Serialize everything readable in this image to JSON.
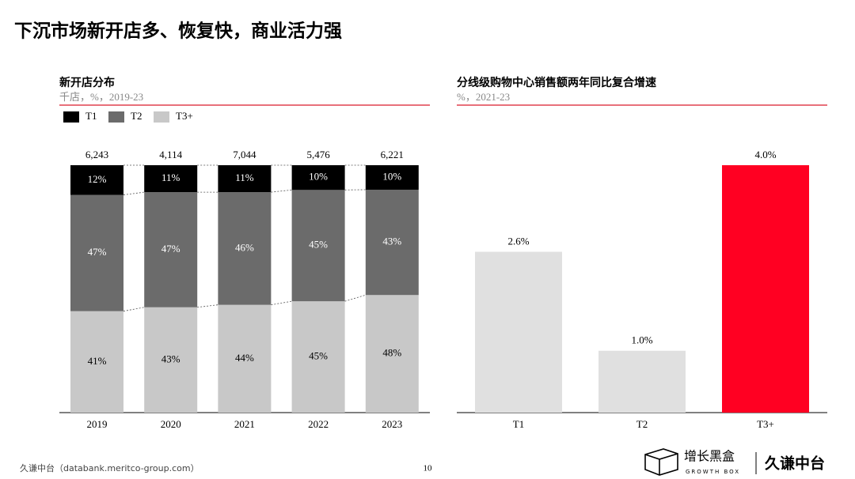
{
  "title": "下沉市场新开店多、恢复快，商业活力强",
  "chart_data": [
    {
      "type": "stacked_bar_100",
      "title": "新开店分布",
      "subtitle": "千店，%，2019-23",
      "categories": [
        "2019",
        "2020",
        "2021",
        "2022",
        "2023"
      ],
      "series": [
        {
          "name": "T1",
          "color": "#000000",
          "values": [
            12,
            11,
            11,
            10,
            10
          ],
          "value_labels": [
            "12%",
            "11%",
            "11%",
            "10%",
            "10%"
          ]
        },
        {
          "name": "T2",
          "color": "#6b6b6b",
          "values": [
            47,
            47,
            46,
            45,
            43
          ],
          "value_labels": [
            "47%",
            "47%",
            "46%",
            "45%",
            "43%"
          ]
        },
        {
          "name": "T3+",
          "color": "#c8c8c8",
          "values": [
            41,
            43,
            44,
            45,
            48
          ],
          "value_labels": [
            "41%",
            "43%",
            "44%",
            "45%",
            "48%"
          ]
        }
      ],
      "totals": {
        "values": [
          6243,
          4114,
          7044,
          5476,
          6221
        ],
        "value_labels": [
          "6,243",
          "4,114",
          "7,044",
          "5,476",
          "6,221"
        ]
      },
      "legend": "top-left"
    },
    {
      "type": "bar",
      "title": "分线级购物中心销售额两年同比复合增速",
      "subtitle": "%，2021-23",
      "categories": [
        "T1",
        "T2",
        "T3+"
      ],
      "values": [
        2.6,
        1.0,
        4.0
      ],
      "value_labels": [
        "2.6%",
        "1.0%",
        "4.0%"
      ],
      "colors": [
        "#e0e0e0",
        "#e0e0e0",
        "#ff0022"
      ]
    }
  ],
  "footer": {
    "source": "久谦中台（databank.meritco-group.com）",
    "page": "10"
  },
  "logo": {
    "brand": "增长黑盒",
    "brand_en": "GROWTH BOX",
    "name": "久谦中台"
  }
}
